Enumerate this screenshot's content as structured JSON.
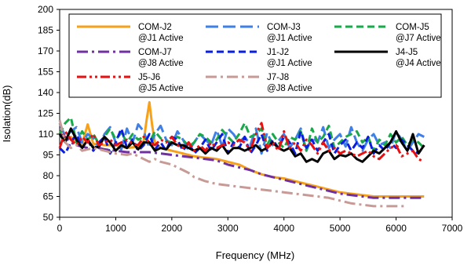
{
  "chart_data": {
    "type": "line",
    "xlabel": "Frequency (MHz)",
    "ylabel": "Isolation(dB)",
    "xlim": [
      0,
      7000
    ],
    "ylim": [
      50,
      200
    ],
    "xticks": [
      "0",
      "1000",
      "2000",
      "3000",
      "4000",
      "5000",
      "6000",
      "7000"
    ],
    "yticks": [
      "50",
      "65",
      "80",
      "95",
      "110",
      "125",
      "140",
      "155",
      "170",
      "185",
      "200"
    ],
    "grid": false,
    "legend": "top, inside plot, 3 columns",
    "series": [
      {
        "name": "COM-J2",
        "sub": "@J1 Active",
        "color": "#f7a11a",
        "dash": "solid",
        "x": [
          0,
          100,
          200,
          300,
          400,
          500,
          600,
          800,
          1000,
          1200,
          1400,
          1500,
          1550,
          1600,
          1650,
          1700,
          1800,
          2000,
          2200,
          2400,
          2600,
          2800,
          3000,
          3200,
          3400,
          3600,
          3800,
          4000,
          4200,
          4400,
          4600,
          4800,
          5000,
          5200,
          5400,
          5600,
          5800,
          6000,
          6200,
          6400,
          6500
        ],
        "y": [
          112,
          106,
          108,
          104,
          103,
          117,
          103,
          102,
          102,
          100,
          101,
          105,
          120,
          133,
          116,
          104,
          100,
          98,
          96,
          94,
          93,
          92,
          90,
          88,
          84,
          81,
          79,
          78,
          76,
          74,
          72,
          70,
          68,
          67,
          66,
          65,
          65,
          65,
          65,
          65,
          65
        ]
      },
      {
        "name": "COM-J3",
        "sub": "@J1 Active",
        "color": "#3f7fe8",
        "dash": "long-dash",
        "x": [
          0,
          100,
          200,
          300,
          400,
          500,
          600,
          700,
          800,
          900,
          1000,
          1100,
          1200,
          1300,
          1400,
          1500,
          1600,
          1700,
          1800,
          1900,
          2000,
          2100,
          2200,
          2300,
          2400,
          2500,
          2600,
          2700,
          2800,
          2900,
          3000,
          3100,
          3200,
          3300,
          3400,
          3500,
          3600,
          3700,
          3800,
          3900,
          4000,
          4100,
          4200,
          4300,
          4400,
          4500,
          4600,
          4700,
          4800,
          4900,
          5000,
          5100,
          5200,
          5300,
          5400,
          5500,
          5600,
          5700,
          5800,
          5900,
          6000,
          6100,
          6200,
          6300,
          6400,
          6500
        ],
        "y": [
          118,
          108,
          112,
          115,
          104,
          110,
          107,
          100,
          110,
          115,
          104,
          99,
          114,
          104,
          117,
          112,
          100,
          110,
          116,
          106,
          102,
          112,
          106,
          98,
          104,
          110,
          106,
          102,
          113,
          101,
          114,
          110,
          104,
          108,
          102,
          114,
          96,
          111,
          102,
          105,
          110,
          100,
          106,
          114,
          98,
          108,
          104,
          115,
          100,
          106,
          110,
          101,
          115,
          104,
          98,
          106,
          110,
          102,
          104,
          100,
          112,
          106,
          98,
          104,
          110,
          108
        ]
      },
      {
        "name": "COM-J5",
        "sub": "@J7 Active",
        "color": "#19a84a",
        "dash": "dash",
        "x": [
          0,
          100,
          200,
          300,
          400,
          500,
          600,
          700,
          800,
          900,
          1000,
          1100,
          1200,
          1300,
          1400,
          1500,
          1600,
          1700,
          1800,
          1900,
          2000,
          2100,
          2200,
          2300,
          2400,
          2500,
          2600,
          2700,
          2800,
          2900,
          3000,
          3100,
          3200,
          3300,
          3400,
          3500,
          3600,
          3700,
          3800,
          3900,
          4000,
          4100,
          4200,
          4300,
          4400,
          4500,
          4600,
          4700,
          4800,
          4900,
          5000,
          5100,
          5200,
          5300,
          5400,
          5500,
          5600,
          5700,
          5800,
          5900,
          6000,
          6100,
          6200,
          6300,
          6400,
          6500
        ],
        "y": [
          110,
          118,
          122,
          104,
          112,
          106,
          110,
          103,
          108,
          114,
          106,
          111,
          104,
          110,
          106,
          108,
          104,
          112,
          107,
          105,
          104,
          108,
          106,
          101,
          104,
          110,
          108,
          104,
          106,
          113,
          108,
          104,
          110,
          118,
          108,
          110,
          114,
          102,
          110,
          104,
          100,
          108,
          106,
          112,
          98,
          114,
          104,
          108,
          116,
          100,
          104,
          108,
          110,
          112,
          104,
          108,
          98,
          106,
          102,
          110,
          104,
          108,
          102,
          106,
          104,
          100
        ]
      },
      {
        "name": "COM-J7",
        "sub": "@J8 Active",
        "color": "#7030a0",
        "dash": "dash-dot",
        "x": [
          0,
          100,
          200,
          300,
          400,
          500,
          600,
          800,
          1000,
          1200,
          1400,
          1600,
          1800,
          2000,
          2200,
          2400,
          2600,
          2800,
          3000,
          3200,
          3400,
          3600,
          3800,
          4000,
          4200,
          4400,
          4600,
          4800,
          5000,
          5200,
          5400,
          5600,
          5800,
          6000,
          6200,
          6400,
          6500
        ],
        "y": [
          110,
          108,
          104,
          102,
          101,
          100,
          101,
          99,
          98,
          97,
          97,
          97,
          96,
          95,
          94,
          93,
          92,
          91,
          88,
          86,
          84,
          81,
          79,
          77,
          75,
          73,
          71,
          69,
          67,
          66,
          65,
          64,
          64,
          64,
          64,
          64,
          64
        ]
      },
      {
        "name": "J1-J2",
        "sub": "@J1 Active",
        "color": "#0a1ee0",
        "dash": "dash",
        "x": [
          0,
          100,
          200,
          300,
          400,
          500,
          600,
          700,
          800,
          900,
          1000,
          1100,
          1200,
          1300,
          1400,
          1500,
          1600,
          1700,
          1800,
          1900,
          2000,
          2100,
          2200,
          2300,
          2400,
          2500,
          2600,
          2700,
          2800,
          2900,
          3000,
          3100,
          3200,
          3300,
          3400,
          3500,
          3600,
          3700,
          3800,
          3900,
          4000,
          4100,
          4200,
          4300,
          4400,
          4500,
          4600,
          4700,
          4800,
          4900,
          5000,
          5100,
          5200,
          5300,
          5400,
          5500,
          5600,
          5700,
          5800,
          5900,
          6000,
          6100,
          6200,
          6300,
          6400,
          6500
        ],
        "y": [
          100,
          96,
          104,
          110,
          100,
          106,
          98,
          104,
          108,
          96,
          104,
          114,
          100,
          106,
          98,
          102,
          110,
          99,
          104,
          98,
          108,
          106,
          98,
          104,
          96,
          100,
          106,
          98,
          104,
          110,
          96,
          104,
          100,
          108,
          96,
          102,
          110,
          98,
          106,
          100,
          108,
          104,
          96,
          112,
          100,
          106,
          98,
          104,
          110,
          96,
          102,
          106,
          98,
          104,
          100,
          108,
          96,
          102,
          98,
          104,
          100,
          106,
          102,
          98,
          96,
          102
        ]
      },
      {
        "name": "J4-J5",
        "sub": "@J4 Active",
        "color": "#000000",
        "dash": "solid",
        "x": [
          0,
          100,
          200,
          300,
          400,
          500,
          600,
          700,
          800,
          900,
          1000,
          1100,
          1200,
          1300,
          1400,
          1500,
          1600,
          1700,
          1800,
          1900,
          2000,
          2100,
          2200,
          2300,
          2400,
          2500,
          2600,
          2700,
          2800,
          2900,
          3000,
          3100,
          3200,
          3300,
          3400,
          3500,
          3600,
          3700,
          3800,
          3900,
          4000,
          4100,
          4200,
          4300,
          4400,
          4500,
          4600,
          4700,
          4800,
          4900,
          5000,
          5100,
          5200,
          5300,
          5400,
          5500,
          5600,
          5700,
          5800,
          5900,
          6000,
          6100,
          6200,
          6300,
          6400,
          6500
        ],
        "y": [
          110,
          104,
          114,
          106,
          100,
          106,
          100,
          101,
          108,
          104,
          98,
          102,
          100,
          104,
          99,
          104,
          104,
          98,
          100,
          99,
          104,
          102,
          102,
          100,
          98,
          100,
          96,
          100,
          98,
          102,
          96,
          100,
          100,
          98,
          100,
          102,
          98,
          100,
          104,
          100,
          98,
          100,
          94,
          96,
          90,
          92,
          90,
          96,
          98,
          92,
          95,
          94,
          96,
          92,
          90,
          94,
          98,
          96,
          100,
          104,
          112,
          104,
          98,
          110,
          96,
          102
        ]
      },
      {
        "name": "J5-J6",
        "sub": "@J5 Active",
        "color": "#e81010",
        "dash": "dash-dot-dot",
        "x": [
          0,
          100,
          200,
          300,
          400,
          500,
          600,
          700,
          800,
          900,
          1000,
          1100,
          1200,
          1300,
          1400,
          1500,
          1600,
          1700,
          1800,
          1900,
          2000,
          2100,
          2200,
          2300,
          2400,
          2500,
          2600,
          2700,
          2800,
          2900,
          3000,
          3100,
          3200,
          3300,
          3400,
          3500,
          3600,
          3700,
          3800,
          3900,
          4000,
          4100,
          4200,
          4300,
          4400,
          4500,
          4600,
          4700,
          4800,
          4900,
          5000,
          5100,
          5200,
          5300,
          5400,
          5500,
          5600,
          5700,
          5800,
          5900,
          6000,
          6100,
          6200,
          6300,
          6400,
          6500
        ],
        "y": [
          100,
          112,
          106,
          102,
          108,
          104,
          110,
          102,
          104,
          106,
          102,
          104,
          106,
          103,
          102,
          108,
          104,
          102,
          106,
          104,
          108,
          102,
          100,
          104,
          98,
          102,
          98,
          104,
          100,
          102,
          104,
          102,
          106,
          104,
          98,
          110,
          118,
          100,
          104,
          98,
          112,
          100,
          104,
          98,
          106,
          102,
          96,
          104,
          98,
          100,
          96,
          98,
          96,
          94,
          96,
          98,
          94,
          92,
          96,
          100,
          102,
          94,
          96,
          98,
          92,
          90
        ]
      },
      {
        "name": "J7-J8",
        "sub": "@J8 Active",
        "color": "#c89a96",
        "dash": "dash-dot",
        "x": [
          0,
          100,
          200,
          300,
          400,
          600,
          800,
          1000,
          1200,
          1300,
          1400,
          1500,
          1600,
          1700,
          1800,
          1900,
          2000,
          2100,
          2200,
          2300,
          2400,
          2600,
          2800,
          3000,
          3200,
          3400,
          3600,
          3800,
          4000,
          4200,
          4400,
          4600,
          4800,
          5000,
          5200,
          5400,
          5600,
          5800,
          6000,
          6200
        ],
        "y": [
          120,
          104,
          100,
          102,
          98,
          100,
          98,
          96,
          95,
          96,
          94,
          92,
          90,
          92,
          90,
          89,
          88,
          86,
          84,
          82,
          79,
          76,
          74,
          73,
          72,
          71,
          70,
          69,
          68,
          67,
          66,
          65,
          64,
          62,
          60,
          59,
          58,
          58,
          58,
          58
        ]
      }
    ]
  }
}
